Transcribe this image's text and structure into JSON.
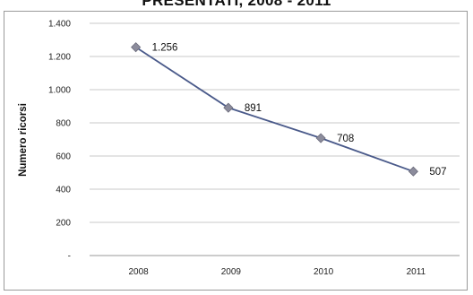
{
  "chart_data": {
    "type": "line",
    "title": "PRESENTATI, 2008 - 2011",
    "xlabel": "",
    "ylabel": "Numero ricorsi",
    "categories": [
      "2008",
      "2009",
      "2010",
      "2011"
    ],
    "series": [
      {
        "values": [
          1256,
          891,
          708,
          507
        ],
        "data_labels": [
          "1.256",
          "891",
          "708",
          "507"
        ],
        "color": "#4a5a8a",
        "marker_color": "#8c8c9c"
      }
    ],
    "ylim": [
      0,
      1400
    ],
    "y_ticks": [
      0,
      200,
      400,
      600,
      800,
      1000,
      1200,
      1400
    ],
    "y_tick_labels": [
      "-",
      "200",
      "400",
      "600",
      "800",
      "1.000",
      "1.200",
      "1.400"
    ],
    "grid": true,
    "legend": "none"
  }
}
